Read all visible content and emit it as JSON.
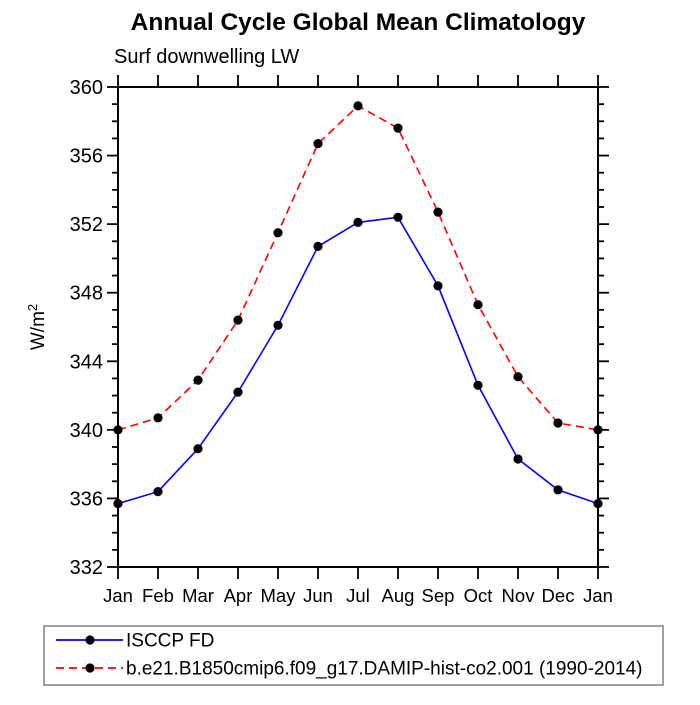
{
  "chart_data": {
    "type": "line",
    "title": "Annual Cycle Global Mean Climatology",
    "subtitle": "Surf downwelling LW",
    "ylabel": "W/m²",
    "ylabel_base": "W/m",
    "ylabel_sup": "2",
    "categories": [
      "Jan",
      "Feb",
      "Mar",
      "Apr",
      "May",
      "Jun",
      "Jul",
      "Aug",
      "Sep",
      "Oct",
      "Nov",
      "Dec",
      "Jan"
    ],
    "ylim": [
      332,
      360
    ],
    "ytick_major_step": 4,
    "ytick_minor_step": 1,
    "grid": false,
    "legend_position": "bottom-left",
    "marker": "filled-circle",
    "marker_color": "#000000",
    "frame_color": "#000000",
    "legend_border_color": "#808080",
    "series": [
      {
        "name": "ISCCP FD",
        "color": "#0000ff",
        "style": "solid",
        "values": [
          335.7,
          336.4,
          338.9,
          342.2,
          346.1,
          350.7,
          352.1,
          352.4,
          348.4,
          342.6,
          338.3,
          336.5,
          335.7
        ]
      },
      {
        "name": "b.e21.B1850cmip6.f09_g17.DAMIP-hist-co2.001 (1990-2014)",
        "color": "#ff0000",
        "style": "dashed",
        "values": [
          340.0,
          340.7,
          342.9,
          346.4,
          351.5,
          356.7,
          358.9,
          357.6,
          352.7,
          347.3,
          343.1,
          340.4,
          340.0
        ]
      }
    ]
  }
}
